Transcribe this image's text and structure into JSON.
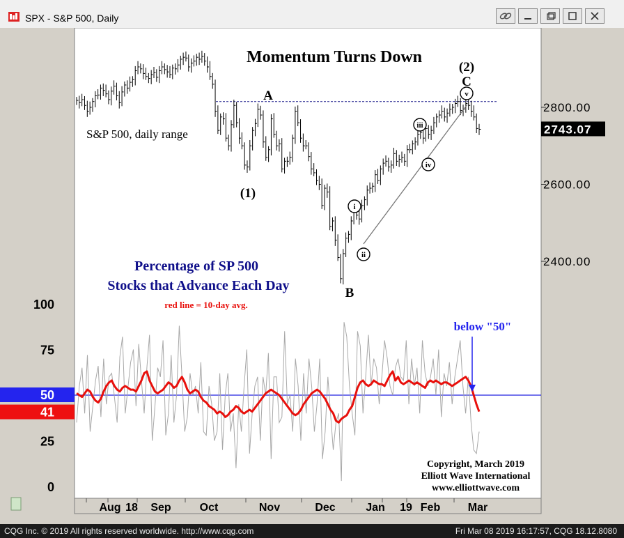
{
  "window": {
    "title": "SPX - S&P 500, Daily",
    "footer_left": "CQG Inc. © 2019 All rights reserved worldwide. http://www.cqg.com",
    "footer_right": "Fri Mar 08 2019 16:17:57, CQG 18.12.8080"
  },
  "colors": {
    "plot_bg": "#ffffff",
    "frame_bg": "#d4d0c8",
    "title_text": "#000000",
    "subtitle_text": "#10108a",
    "red_avg": "#e8100c",
    "gray_line": "#a8a8a8",
    "blue_line": "#2020e0",
    "dashed_line": "#1a1a8a",
    "badge_blue": "#2424ee",
    "badge_red": "#ee1010"
  },
  "chart_data": {
    "type": "line",
    "title": "Momentum Turns Down",
    "x_tick_labels": [
      "Aug",
      "18",
      "Sep",
      "Oct",
      "Nov",
      "Dec",
      "Jan",
      "19",
      "Feb",
      "Mar"
    ],
    "price_panel": {
      "series_label": "S&P 500, daily range",
      "y_ticks": [
        "2800.00",
        "2600.00",
        "2400.00"
      ],
      "ylim": [
        2330,
        2990
      ],
      "last_price": "2743.07",
      "resistance_level": 2815,
      "wave_labels": [
        "(1)",
        "A",
        "B",
        "C",
        "(2)",
        "i",
        "ii",
        "iii",
        "iv",
        "v"
      ],
      "daily_close": [
        2818,
        2812,
        2820,
        2805,
        2790,
        2800,
        2815,
        2830,
        2832,
        2850,
        2844,
        2835,
        2820,
        2842,
        2855,
        2830,
        2812,
        2840,
        2858,
        2850,
        2865,
        2872,
        2895,
        2905,
        2900,
        2888,
        2880,
        2875,
        2885,
        2890,
        2878,
        2895,
        2905,
        2898,
        2892,
        2885,
        2902,
        2900,
        2910,
        2925,
        2930,
        2928,
        2905,
        2915,
        2920,
        2930,
        2925,
        2932,
        2920,
        2905,
        2880,
        2860,
        2790,
        2740,
        2775,
        2770,
        2720,
        2700,
        2755,
        2805,
        2760,
        2720,
        2700,
        2650,
        2645,
        2700,
        2740,
        2758,
        2795,
        2780,
        2710,
        2670,
        2690,
        2770,
        2730,
        2700,
        2705,
        2640,
        2660,
        2660,
        2670,
        2720,
        2790,
        2760,
        2720,
        2700,
        2700,
        2672,
        2640,
        2630,
        2610,
        2600,
        2545,
        2590,
        2580,
        2490,
        2505,
        2455,
        2410,
        2355,
        2420,
        2460,
        2470,
        2505,
        2530,
        2520,
        2510,
        2545,
        2560,
        2585,
        2590,
        2595,
        2625,
        2610,
        2640,
        2655,
        2660,
        2645,
        2650,
        2680,
        2660,
        2665,
        2670,
        2660,
        2690,
        2690,
        2705,
        2710,
        2730,
        2735,
        2720,
        2745,
        2730,
        2740,
        2760,
        2775,
        2780,
        2790,
        2775,
        2785,
        2795,
        2800,
        2810,
        2815,
        2792,
        2795,
        2810,
        2805,
        2790,
        2775,
        2745,
        2743
      ]
    },
    "breadth_panel": {
      "title_line1": "Percentage of SP 500",
      "title_line2": "Stocks that Advance Each Day",
      "legend": "red line = 10-day avg.",
      "annotation": "below \"50\"",
      "y_ticks": [
        "100",
        "75",
        "25",
        "0"
      ],
      "ylim": [
        0,
        100
      ],
      "reference_level": 50,
      "ref_badge": "50",
      "last_avg_badge": "41",
      "ten_day_avg": [
        51,
        50,
        49,
        51,
        53,
        52,
        49,
        47,
        46,
        48,
        52,
        55,
        57,
        58,
        55,
        53,
        52,
        54,
        55,
        54,
        53,
        53,
        52,
        55,
        58,
        62,
        63,
        58,
        55,
        52,
        51,
        52,
        53,
        55,
        57,
        56,
        54,
        55,
        58,
        60,
        57,
        53,
        51,
        52,
        53,
        52,
        49,
        47,
        46,
        44,
        43,
        42,
        40,
        41,
        40,
        38,
        39,
        41,
        42,
        44,
        43,
        41,
        40,
        41,
        42,
        41,
        43,
        45,
        47,
        49,
        51,
        52,
        53,
        52,
        51,
        50,
        48,
        46,
        44,
        42,
        40,
        39,
        40,
        42,
        45,
        47,
        49,
        51,
        52,
        53,
        52,
        50,
        48,
        45,
        42,
        40,
        36,
        35,
        37,
        38,
        39,
        42,
        44,
        49,
        54,
        57,
        58,
        56,
        55,
        56,
        58,
        57,
        56,
        56,
        55,
        58,
        61,
        63,
        58,
        60,
        57,
        56,
        57,
        58,
        57,
        56,
        57,
        56,
        55,
        54,
        57,
        58,
        57,
        58,
        57,
        56,
        57,
        57,
        56,
        55,
        56,
        57,
        58,
        59,
        60,
        58,
        55,
        50,
        45,
        41
      ],
      "daily_pct": [
        35,
        55,
        65,
        40,
        72,
        30,
        44,
        58,
        66,
        38,
        70,
        45,
        60,
        62,
        49,
        35,
        71,
        82,
        40,
        54,
        68,
        75,
        44,
        78,
        58,
        40,
        65,
        83,
        25,
        44,
        65,
        60,
        80,
        28,
        40,
        72,
        35,
        50,
        88,
        60,
        30,
        38,
        62,
        50,
        55,
        40,
        68,
        30,
        28,
        55,
        45,
        25,
        30,
        62,
        20,
        50,
        62,
        30,
        40,
        10,
        45,
        30,
        55,
        75,
        18,
        40,
        55,
        60,
        25,
        60,
        50,
        73,
        15,
        60,
        60,
        35,
        38,
        85,
        45,
        50,
        30,
        70,
        55,
        25,
        62,
        40,
        70,
        55,
        30,
        45,
        70,
        15,
        30,
        60,
        40,
        20,
        35,
        40,
        3,
        90,
        82,
        55,
        40,
        28,
        85,
        77,
        40,
        60,
        83,
        55,
        70,
        65,
        45,
        60,
        80,
        70,
        55,
        50,
        65,
        70,
        60,
        58,
        80,
        45,
        70,
        55,
        65,
        40,
        80,
        62,
        55,
        60,
        70,
        50,
        75,
        38,
        62,
        55,
        68,
        45,
        60,
        70,
        80,
        55,
        40,
        60,
        35,
        20,
        18,
        30
      ]
    },
    "copyright": [
      "Copyright, March 2019",
      "Elliott Wave International",
      "www.elliottwave.com"
    ]
  }
}
